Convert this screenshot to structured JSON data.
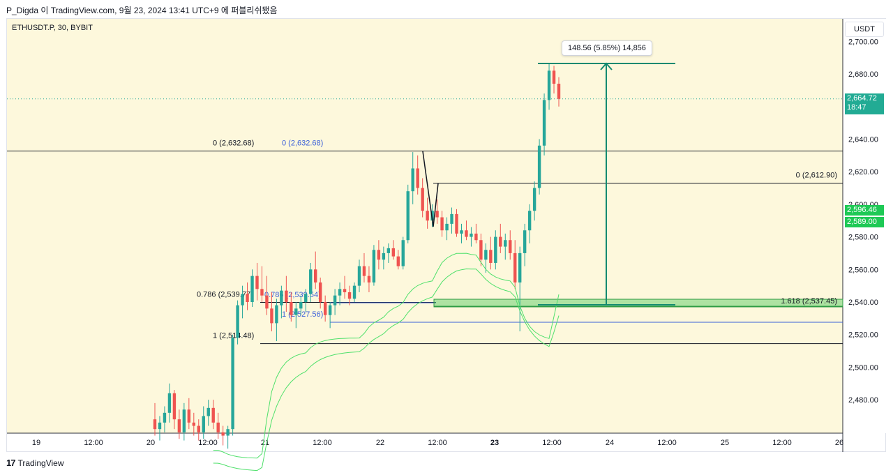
{
  "header": {
    "text": "P_Digda 이 TradingView.com, 9월 23, 2024 13:41 UTC+9 에 퍼블리쉬됐음"
  },
  "symbol": {
    "label": "ETHUSDT.P, 30, BYBIT"
  },
  "currency_button": {
    "label": "USDT"
  },
  "price_tags": [
    {
      "label": "2,664.72",
      "sub": "18:47",
      "color": "#22ab94"
    },
    {
      "label": "2,596.46",
      "sub": "",
      "color": "#1ec955"
    },
    {
      "label": "2,589.00",
      "sub": "",
      "color": "#1ec955"
    }
  ],
  "measure": {
    "label": "148.56 (5.85%) 14,856"
  },
  "footer": {
    "brand": "TradingView",
    "brand_icon": "tradingview-logo-icon"
  },
  "colors": {
    "background": "#fdf8dc",
    "up": "#26a69a",
    "down": "#ef5350",
    "band": "#4fe06b",
    "measure": "#138a70",
    "blue_fib": "#3b5fd9"
  },
  "chart_data": {
    "type": "candlestick",
    "symbol": "ETHUSDT.P",
    "interval": "30",
    "exchange": "BYBIT",
    "last_price": 2664.72,
    "ylim": [
      2460,
      2710
    ],
    "y_ticks": [
      "2,480.00",
      "2,500.00",
      "2,520.00",
      "2,540.00",
      "2,560.00",
      "2,580.00",
      "2,600.00",
      "2,620.00",
      "2,640.00",
      "2,660.00",
      "2,680.00",
      "2,700.00"
    ],
    "x_ticks": [
      "19",
      "12:00",
      "20",
      "12:00",
      "21",
      "12:00",
      "22",
      "12:00",
      "23",
      "12:00",
      "24",
      "12:00",
      "25",
      "12:00",
      "26"
    ],
    "candles": [
      {
        "o": 2468,
        "h": 2478,
        "l": 2458,
        "c": 2462
      },
      {
        "o": 2462,
        "h": 2470,
        "l": 2455,
        "c": 2466
      },
      {
        "o": 2466,
        "h": 2476,
        "l": 2460,
        "c": 2472
      },
      {
        "o": 2472,
        "h": 2490,
        "l": 2466,
        "c": 2484
      },
      {
        "o": 2484,
        "h": 2486,
        "l": 2462,
        "c": 2468
      },
      {
        "o": 2468,
        "h": 2474,
        "l": 2456,
        "c": 2460
      },
      {
        "o": 2460,
        "h": 2478,
        "l": 2455,
        "c": 2474
      },
      {
        "o": 2474,
        "h": 2481,
        "l": 2462,
        "c": 2466
      },
      {
        "o": 2466,
        "h": 2472,
        "l": 2458,
        "c": 2464
      },
      {
        "o": 2464,
        "h": 2468,
        "l": 2455,
        "c": 2460
      },
      {
        "o": 2460,
        "h": 2476,
        "l": 2456,
        "c": 2470
      },
      {
        "o": 2470,
        "h": 2480,
        "l": 2464,
        "c": 2475
      },
      {
        "o": 2475,
        "h": 2480,
        "l": 2462,
        "c": 2466
      },
      {
        "o": 2466,
        "h": 2472,
        "l": 2456,
        "c": 2460
      },
      {
        "o": 2460,
        "h": 2464,
        "l": 2452,
        "c": 2458
      },
      {
        "o": 2458,
        "h": 2464,
        "l": 2450,
        "c": 2462
      },
      {
        "o": 2462,
        "h": 2520,
        "l": 2458,
        "c": 2518
      },
      {
        "o": 2518,
        "h": 2541,
        "l": 2514,
        "c": 2538
      },
      {
        "o": 2538,
        "h": 2550,
        "l": 2530,
        "c": 2545
      },
      {
        "o": 2545,
        "h": 2552,
        "l": 2535,
        "c": 2540
      },
      {
        "o": 2540,
        "h": 2560,
        "l": 2537,
        "c": 2556
      },
      {
        "o": 2556,
        "h": 2564,
        "l": 2541,
        "c": 2548
      },
      {
        "o": 2548,
        "h": 2562,
        "l": 2540,
        "c": 2544
      },
      {
        "o": 2544,
        "h": 2556,
        "l": 2532,
        "c": 2536
      },
      {
        "o": 2536,
        "h": 2546,
        "l": 2522,
        "c": 2527
      },
      {
        "o": 2527,
        "h": 2542,
        "l": 2516,
        "c": 2538
      },
      {
        "o": 2538,
        "h": 2550,
        "l": 2530,
        "c": 2547
      },
      {
        "o": 2547,
        "h": 2556,
        "l": 2534,
        "c": 2540
      },
      {
        "o": 2540,
        "h": 2546,
        "l": 2528,
        "c": 2532
      },
      {
        "o": 2532,
        "h": 2540,
        "l": 2524,
        "c": 2536
      },
      {
        "o": 2536,
        "h": 2544,
        "l": 2532,
        "c": 2540
      },
      {
        "o": 2540,
        "h": 2548,
        "l": 2534,
        "c": 2545
      },
      {
        "o": 2545,
        "h": 2564,
        "l": 2540,
        "c": 2560
      },
      {
        "o": 2560,
        "h": 2571,
        "l": 2548,
        "c": 2552
      },
      {
        "o": 2552,
        "h": 2555,
        "l": 2536,
        "c": 2540
      },
      {
        "o": 2540,
        "h": 2544,
        "l": 2528,
        "c": 2532
      },
      {
        "o": 2532,
        "h": 2540,
        "l": 2524,
        "c": 2538
      },
      {
        "o": 2538,
        "h": 2548,
        "l": 2532,
        "c": 2544
      },
      {
        "o": 2544,
        "h": 2552,
        "l": 2538,
        "c": 2548
      },
      {
        "o": 2548,
        "h": 2556,
        "l": 2542,
        "c": 2546
      },
      {
        "o": 2546,
        "h": 2550,
        "l": 2538,
        "c": 2542
      },
      {
        "o": 2542,
        "h": 2552,
        "l": 2540,
        "c": 2550
      },
      {
        "o": 2550,
        "h": 2566,
        "l": 2546,
        "c": 2562
      },
      {
        "o": 2562,
        "h": 2570,
        "l": 2552,
        "c": 2556
      },
      {
        "o": 2556,
        "h": 2562,
        "l": 2546,
        "c": 2552
      },
      {
        "o": 2552,
        "h": 2575,
        "l": 2550,
        "c": 2572
      },
      {
        "o": 2572,
        "h": 2578,
        "l": 2560,
        "c": 2566
      },
      {
        "o": 2566,
        "h": 2574,
        "l": 2560,
        "c": 2570
      },
      {
        "o": 2570,
        "h": 2576,
        "l": 2564,
        "c": 2573
      },
      {
        "o": 2573,
        "h": 2578,
        "l": 2566,
        "c": 2568
      },
      {
        "o": 2568,
        "h": 2572,
        "l": 2560,
        "c": 2562
      },
      {
        "o": 2562,
        "h": 2580,
        "l": 2560,
        "c": 2578
      },
      {
        "o": 2578,
        "h": 2612,
        "l": 2576,
        "c": 2608
      },
      {
        "o": 2608,
        "h": 2632,
        "l": 2600,
        "c": 2622
      },
      {
        "o": 2622,
        "h": 2630,
        "l": 2606,
        "c": 2610
      },
      {
        "o": 2610,
        "h": 2616,
        "l": 2592,
        "c": 2596
      },
      {
        "o": 2596,
        "h": 2604,
        "l": 2585,
        "c": 2590
      },
      {
        "o": 2590,
        "h": 2600,
        "l": 2586,
        "c": 2596
      },
      {
        "o": 2596,
        "h": 2603,
        "l": 2588,
        "c": 2592
      },
      {
        "o": 2592,
        "h": 2596,
        "l": 2580,
        "c": 2584
      },
      {
        "o": 2584,
        "h": 2592,
        "l": 2578,
        "c": 2588
      },
      {
        "o": 2588,
        "h": 2598,
        "l": 2582,
        "c": 2594
      },
      {
        "o": 2594,
        "h": 2597,
        "l": 2580,
        "c": 2582
      },
      {
        "o": 2582,
        "h": 2588,
        "l": 2576,
        "c": 2584
      },
      {
        "o": 2584,
        "h": 2590,
        "l": 2578,
        "c": 2580
      },
      {
        "o": 2580,
        "h": 2586,
        "l": 2574,
        "c": 2582
      },
      {
        "o": 2582,
        "h": 2588,
        "l": 2576,
        "c": 2578
      },
      {
        "o": 2578,
        "h": 2582,
        "l": 2562,
        "c": 2566
      },
      {
        "o": 2566,
        "h": 2576,
        "l": 2558,
        "c": 2572
      },
      {
        "o": 2572,
        "h": 2580,
        "l": 2560,
        "c": 2564
      },
      {
        "o": 2564,
        "h": 2584,
        "l": 2560,
        "c": 2580
      },
      {
        "o": 2580,
        "h": 2588,
        "l": 2570,
        "c": 2574
      },
      {
        "o": 2574,
        "h": 2582,
        "l": 2566,
        "c": 2578
      },
      {
        "o": 2578,
        "h": 2584,
        "l": 2566,
        "c": 2570
      },
      {
        "o": 2570,
        "h": 2578,
        "l": 2548,
        "c": 2552
      },
      {
        "o": 2552,
        "h": 2574,
        "l": 2522,
        "c": 2570
      },
      {
        "o": 2570,
        "h": 2588,
        "l": 2562,
        "c": 2584
      },
      {
        "o": 2584,
        "h": 2600,
        "l": 2576,
        "c": 2596
      },
      {
        "o": 2596,
        "h": 2614,
        "l": 2590,
        "c": 2610
      },
      {
        "o": 2610,
        "h": 2640,
        "l": 2606,
        "c": 2636
      },
      {
        "o": 2636,
        "h": 2668,
        "l": 2630,
        "c": 2664
      },
      {
        "o": 2664,
        "h": 2686,
        "l": 2658,
        "c": 2682
      },
      {
        "o": 2682,
        "h": 2685,
        "l": 2668,
        "c": 2674
      },
      {
        "o": 2674,
        "h": 2678,
        "l": 2660,
        "c": 2664.72
      }
    ],
    "fib_levels": [
      {
        "label": "0 (2,632.68)",
        "value": 2632.68
      },
      {
        "label": "0 (2,632.68)",
        "value": 2632.68
      },
      {
        "label": "0.786 (2,539.77)",
        "value": 2539.77
      },
      {
        "label": "0.786 (2,539.54)",
        "value": 2539.54
      },
      {
        "label": "1 (2,514.48)",
        "value": 2514.48
      },
      {
        "label": "1 (2,527.56)",
        "value": 2527.56
      },
      {
        "label": "0 (2,612.90)",
        "value": 2612.9
      },
      {
        "label": "1.618 (2,537.45)",
        "value": 2537.45
      }
    ],
    "measure": {
      "from": 2537.45,
      "to": 2686.01,
      "change": 148.56,
      "percent": "5.85%",
      "ticks": 14856
    }
  }
}
